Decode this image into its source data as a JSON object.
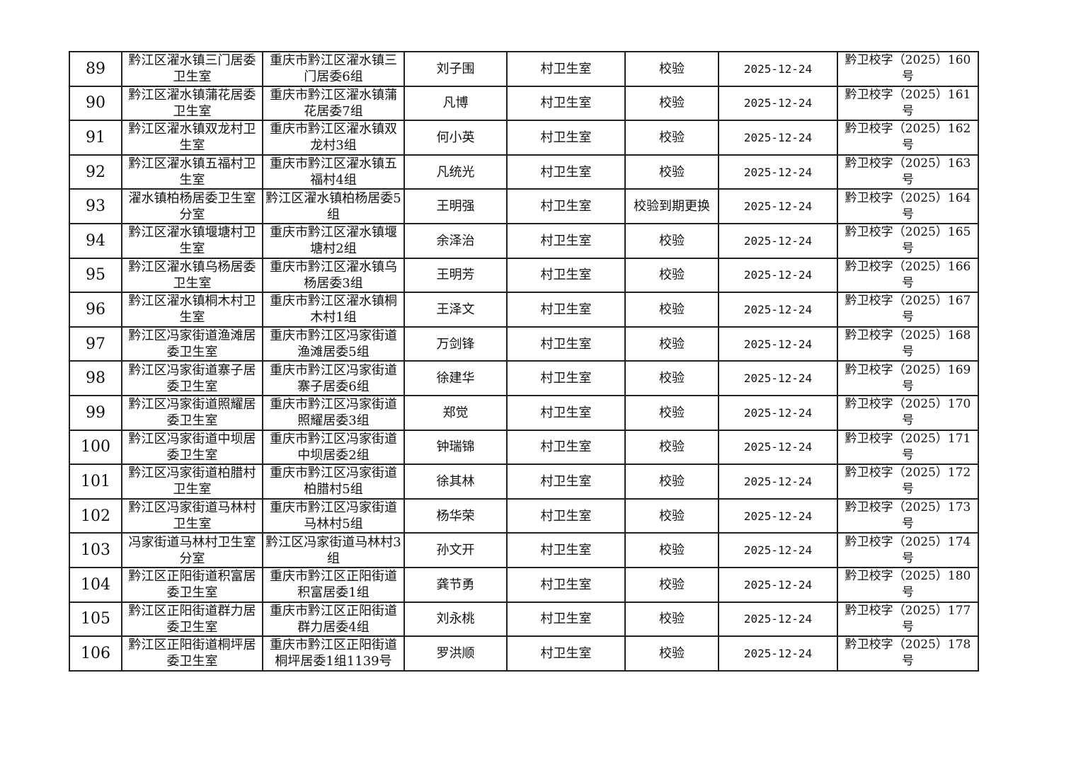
{
  "table": {
    "rows": [
      {
        "no": "89",
        "name": "黔江区濯水镇三门居委卫生室",
        "address": "重庆市黔江区濯水镇三门居委6组",
        "person": "刘子围",
        "type": "村卫生室",
        "action": "校验",
        "date": "2025-12-24",
        "doc": "黔卫校字（2025）160号"
      },
      {
        "no": "90",
        "name": "黔江区濯水镇蒲花居委卫生室",
        "address": "重庆市黔江区濯水镇蒲花居委7组",
        "person": "凡博",
        "type": "村卫生室",
        "action": "校验",
        "date": "2025-12-24",
        "doc": "黔卫校字（2025）161号"
      },
      {
        "no": "91",
        "name": "黔江区濯水镇双龙村卫生室",
        "address": "重庆市黔江区濯水镇双龙村3组",
        "person": "何小英",
        "type": "村卫生室",
        "action": "校验",
        "date": "2025-12-24",
        "doc": "黔卫校字（2025）162号"
      },
      {
        "no": "92",
        "name": "黔江区濯水镇五福村卫生室",
        "address": "重庆市黔江区濯水镇五福村4组",
        "person": "凡统光",
        "type": "村卫生室",
        "action": "校验",
        "date": "2025-12-24",
        "doc": "黔卫校字（2025）163号"
      },
      {
        "no": "93",
        "name": "濯水镇柏杨居委卫生室分室",
        "address": "黔江区濯水镇柏杨居委5组",
        "person": "王明强",
        "type": "村卫生室",
        "action": "校验到期更换",
        "date": "2025-12-24",
        "doc": "黔卫校字（2025）164号"
      },
      {
        "no": "94",
        "name": "黔江区濯水镇堰塘村卫生室",
        "address": "重庆市黔江区濯水镇堰塘村2组",
        "person": "余泽治",
        "type": "村卫生室",
        "action": "校验",
        "date": "2025-12-24",
        "doc": "黔卫校字（2025）165号"
      },
      {
        "no": "95",
        "name": "黔江区濯水镇乌杨居委卫生室",
        "address": "重庆市黔江区濯水镇乌杨居委3组",
        "person": "王明芳",
        "type": "村卫生室",
        "action": "校验",
        "date": "2025-12-24",
        "doc": "黔卫校字（2025）166号"
      },
      {
        "no": "96",
        "name": "黔江区濯水镇桐木村卫生室",
        "address": "重庆市黔江区濯水镇桐木村1组",
        "person": "王泽文",
        "type": "村卫生室",
        "action": "校验",
        "date": "2025-12-24",
        "doc": "黔卫校字（2025）167号"
      },
      {
        "no": "97",
        "name": "黔江区冯家街道渔滩居委卫生室",
        "address": "重庆市黔江区冯家街道渔滩居委5组",
        "person": "万剑锋",
        "type": "村卫生室",
        "action": "校验",
        "date": "2025-12-24",
        "doc": "黔卫校字（2025）168号"
      },
      {
        "no": "98",
        "name": "黔江区冯家街道寨子居委卫生室",
        "address": "重庆市黔江区冯家街道寨子居委6组",
        "person": "徐建华",
        "type": "村卫生室",
        "action": "校验",
        "date": "2025-12-24",
        "doc": "黔卫校字（2025）169号"
      },
      {
        "no": "99",
        "name": "黔江区冯家街道照耀居委卫生室",
        "address": "重庆市黔江区冯家街道照耀居委3组",
        "person": "郑觉",
        "type": "村卫生室",
        "action": "校验",
        "date": "2025-12-24",
        "doc": "黔卫校字（2025）170号"
      },
      {
        "no": "100",
        "name": "黔江区冯家街道中坝居委卫生室",
        "address": "重庆市黔江区冯家街道中坝居委2组",
        "person": "钟瑞锦",
        "type": "村卫生室",
        "action": "校验",
        "date": "2025-12-24",
        "doc": "黔卫校字（2025）171号"
      },
      {
        "no": "101",
        "name": "黔江区冯家街道柏腊村卫生室",
        "address": "重庆市黔江区冯家街道柏腊村5组",
        "person": "徐其林",
        "type": "村卫生室",
        "action": "校验",
        "date": "2025-12-24",
        "doc": "黔卫校字（2025）172号"
      },
      {
        "no": "102",
        "name": "黔江区冯家街道马林村卫生室",
        "address": "重庆市黔江区冯家街道马林村5组",
        "person": "杨华荣",
        "type": "村卫生室",
        "action": "校验",
        "date": "2025-12-24",
        "doc": "黔卫校字（2025）173号"
      },
      {
        "no": "103",
        "name": "冯家街道马林村卫生室分室",
        "address": "黔江区冯家街道马林村3组",
        "person": "孙文开",
        "type": "村卫生室",
        "action": "校验",
        "date": "2025-12-24",
        "doc": "黔卫校字（2025）174号"
      },
      {
        "no": "104",
        "name": "黔江区正阳街道积富居委卫生室",
        "address": "重庆市黔江区正阳街道积富居委1组",
        "person": "龚节勇",
        "type": "村卫生室",
        "action": "校验",
        "date": "2025-12-24",
        "doc": "黔卫校字（2025）180号"
      },
      {
        "no": "105",
        "name": "黔江区正阳街道群力居委卫生室",
        "address": "重庆市黔江区正阳街道群力居委4组",
        "person": "刘永桃",
        "type": "村卫生室",
        "action": "校验",
        "date": "2025-12-24",
        "doc": "黔卫校字（2025）177号"
      },
      {
        "no": "106",
        "name": "黔江区正阳街道桐坪居委卫生室",
        "address": "重庆市黔江区正阳街道桐坪居委1组1139号",
        "person": "罗洪顺",
        "type": "村卫生室",
        "action": "校验",
        "date": "2025-12-24",
        "doc": "黔卫校字（2025）178号"
      }
    ]
  }
}
